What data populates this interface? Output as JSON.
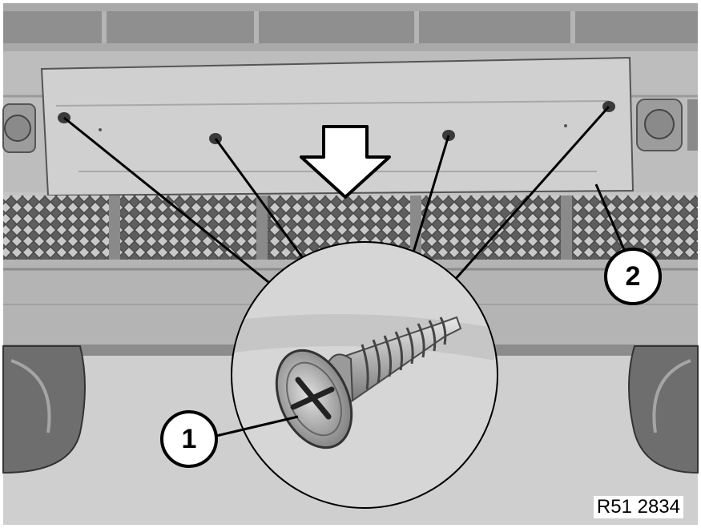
{
  "figure": {
    "code": "R51 2834",
    "callouts": [
      {
        "label": "1",
        "target": "screw"
      },
      {
        "label": "2",
        "target": "license-plate-bracket"
      }
    ]
  },
  "colors": {
    "background": "#ffffff",
    "bumper": "#b9b9b9",
    "bumper_dark": "#8a8a8a",
    "plate": "#cfcfcf",
    "grille": "#6f6f6f",
    "ground": "#d2d2d2",
    "ink": "#000000"
  }
}
